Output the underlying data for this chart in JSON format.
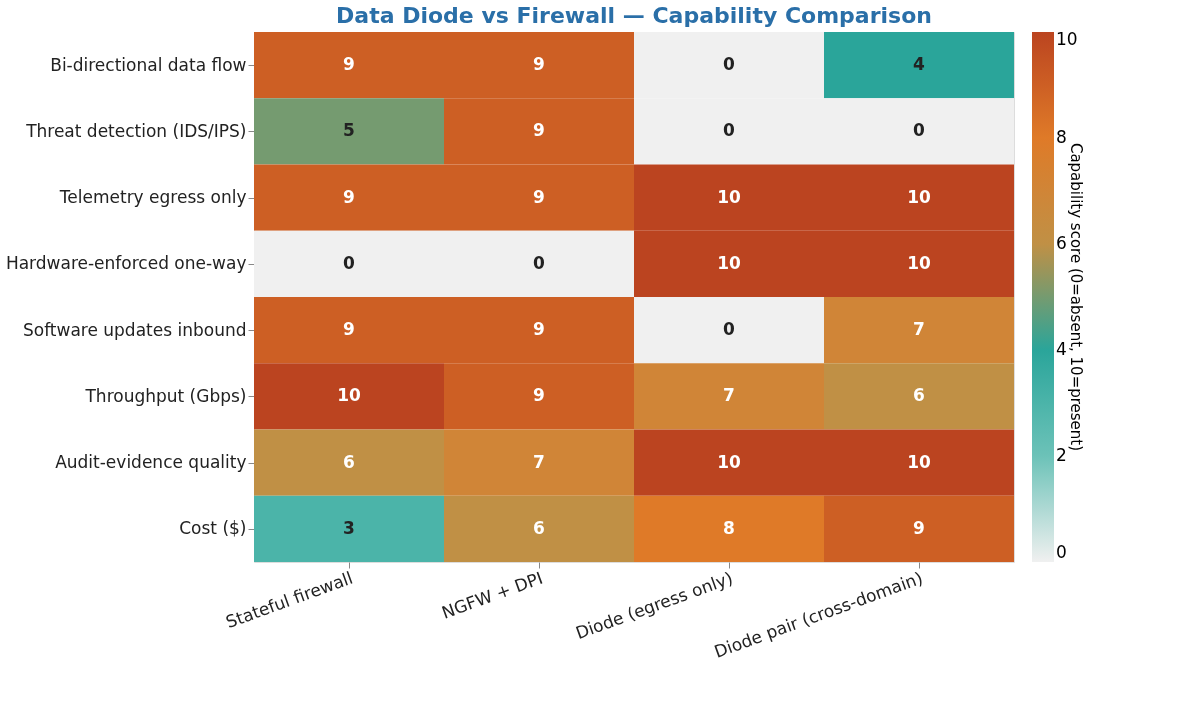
{
  "chart_data": {
    "type": "heatmap",
    "title": "Data Diode vs Firewall — Capability Comparison",
    "categories": [
      "Stateful firewall",
      "NGFW + DPI",
      "Diode (egress only)",
      "Diode pair (cross-domain)"
    ],
    "y_categories": [
      "Bi-directional data flow",
      "Threat detection (IDS/IPS)",
      "Telemetry egress only",
      "Hardware-enforced one-way",
      "Software updates inbound",
      "Throughput (Gbps)",
      "Audit-evidence quality",
      "Cost ($)"
    ],
    "cells": [
      [
        9,
        9,
        0,
        4
      ],
      [
        5,
        9,
        0,
        0
      ],
      [
        9,
        9,
        10,
        10
      ],
      [
        0,
        0,
        10,
        10
      ],
      [
        9,
        9,
        0,
        7
      ],
      [
        10,
        9,
        7,
        6
      ],
      [
        6,
        7,
        10,
        10
      ],
      [
        3,
        6,
        8,
        9
      ]
    ],
    "clabel": "Capability score (0=absent, 10=present)",
    "clim": [
      0,
      10
    ],
    "cticks": [
      0,
      2,
      4,
      6,
      8,
      10
    ],
    "colors": [
      "#f0f0f0",
      "#6cc2b8",
      "#2aa59a",
      "#c09045",
      "#df7a28",
      "#bb4420"
    ],
    "data_labels": true,
    "grid": false
  }
}
